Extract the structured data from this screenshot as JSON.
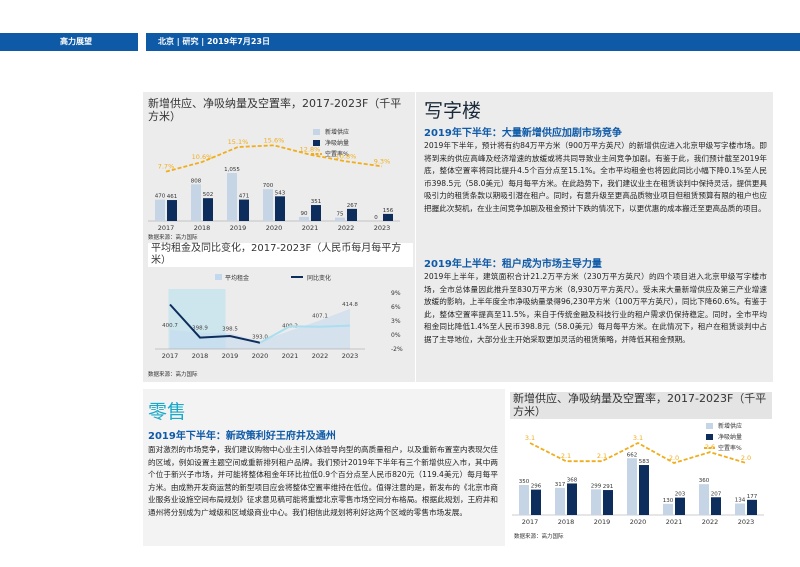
{
  "header": {
    "left": "高力展望",
    "right": "北京 | 研究 | 2019年7月23日"
  },
  "office": {
    "heading": "写字楼",
    "chart1": {
      "title": "新增供应、净吸纳量及空置率，2017-2023F（千平方米）",
      "legend": [
        "新增供应",
        "净吸纳量",
        "空置率%"
      ],
      "source": "数据来源：高力国际"
    },
    "chart2": {
      "title": "平均租金及同比变化，2017-2023F（人民币每月每平方米）",
      "legend": [
        "平均租金",
        "同比变化"
      ],
      "source": "数据来源：高力国际"
    },
    "sub1": "2019年下半年：大量新增供应加剧市场竞争",
    "para1": "2019年下半年，预计将有约84万平方米（900万平方英尺）的新增供应进入北京甲级写字楼市场。即将到来的供应高峰及经济增速的放缓或将共同导致业主间竞争加剧。有鉴于此，我们预计截至2019年底，整体空置率将同比提升4.5个百分点至15.1%。全市平均租金也将因此同比小幅下降0.1%至人民币398.5元（58.0美元）每月每平方米。在此趋势下，我们建议业主在租赁谈判中保持灵活，提供更具吸引力的租赁条款以期吸引潜在租户。同时，有意升级至更高品质物业项目但租赁预算有限的租户也应把握此次契机，在业主间竞争加剧及租金预计下跌的情况下，以更优惠的成本搬迁至更高品质的项目。",
    "sub2": "2019年上半年：租户成为市场主导力量",
    "para2": "2019年上半年，建筑面积合计21.2万平方米（230万平方英尺）的四个项目进入北京甲级写字楼市场，全市总体量因此推升至830万平方米（8,930万平方英尺）。受未来大量新增供应及第三产业增速放缓的影响，上半年度全市净吸纳量录得96,230平方米（100万平方英尺），同比下降60.6%。有鉴于此，整体空置率提高至11.5%，来自于传统金融及科技行业的租户需求仍保持稳定。同时，全市平均租金同比降低1.4%至人民币398.8元（58.0美元）每月每平方米。在此情况下，租户在租赁谈判中占据了主导地位，大部分业主开始采取更加灵活的租赁策略，并降低其租金预期。"
  },
  "retail": {
    "heading": "零售",
    "sub": "2019年下半年：新政策利好王府井及通州",
    "para": "面对激烈的市场竞争，我们建议购物中心业主引入体验导向型的高质量租户，以及重新布置室内表现欠佳的区域，例如设置主题空间或重新排列租户品牌。我们预计2019年下半年有三个新增供应入市，其中两个位于新兴子市场，并可能将整体租金年环比拉低0.9个百分点至人民币820元（119.4美元）每月每平方米。由成熟开发商运营的新型项目应会将整体空置率维持在低位。值得注意的是，新发布的《北京市商业服务业设施空间布局规划》征求意见稿可能将重塑北京零售市场空间分布格局。根据此规划，王府井和通州将分别成为广域级和区域级商业中心。我们相信此规划将利好这两个区域的零售市场发展。",
    "chart": {
      "title": "新增供应、净吸纳量及空置率，2017-2023F（千平方米）",
      "legend": [
        "新增供应",
        "净吸纳量",
        "空置率%"
      ],
      "source": "数据来源：高力国际"
    }
  },
  "chart_data": [
    {
      "type": "bar",
      "title": "新增供应、净吸纳量及空置率，2017-2023F（千平方米）",
      "categories": [
        "2017",
        "2018",
        "2019",
        "2020",
        "2021",
        "2022",
        "2023"
      ],
      "series": [
        {
          "name": "新增供应",
          "values": [
            470,
            808,
            1055,
            700,
            90,
            75,
            0
          ]
        },
        {
          "name": "净吸纳量",
          "values": [
            461,
            502,
            471,
            543,
            351,
            267,
            156
          ]
        },
        {
          "name": "空置率%",
          "values": [
            7.7,
            10.6,
            15.1,
            15.6,
            12.8,
            10.8,
            9.3
          ]
        }
      ],
      "value_labels": {
        "supply": [
          "470",
          "808",
          "1,055",
          "700",
          "90",
          "75",
          "0"
        ],
        "absorb": [
          "461",
          "502",
          "471",
          "543",
          "351",
          "267",
          "156"
        ],
        "vacancy": [
          "7.7%",
          "10.6%",
          "15.1%",
          "15.6%",
          "12.8%",
          "10.8%",
          "9.3%"
        ]
      },
      "colors": [
        "#c5d5e6",
        "#0d2d5c",
        "#f0ad1c"
      ]
    },
    {
      "type": "area",
      "title": "平均租金及同比变化，2017-2023F（人民币每月每平方米）",
      "categories": [
        "2017",
        "2018",
        "2019",
        "2020",
        "2021",
        "2022",
        "2023"
      ],
      "series": [
        {
          "name": "平均租金",
          "values": [
            400.7,
            398.9,
            398.5,
            393.0,
            400.2,
            407.1,
            414.8
          ]
        },
        {
          "name": "同比变化",
          "values": [
            6.0,
            -0.4,
            -0.1,
            -1.4,
            1.8,
            1.7,
            1.9
          ]
        }
      ],
      "rent_labels": [
        "400.7",
        "398.9",
        "398.5",
        "393.0",
        "400.2",
        "407.1",
        "414.8"
      ],
      "y2_ticks": [
        "9%",
        "6%",
        "3%",
        "0%",
        "-2%"
      ],
      "colors": [
        "#c3d8ee",
        "#0d2d5c",
        "#a9dff0"
      ]
    },
    {
      "type": "bar",
      "title": "新增供应、净吸纳量及空置率，2017-2023F（千平方米）",
      "categories": [
        "2017",
        "2018",
        "2019",
        "2020",
        "2021",
        "2022",
        "2023"
      ],
      "series": [
        {
          "name": "新增供应",
          "values": [
            350,
            317,
            299,
            662,
            130,
            360,
            134
          ]
        },
        {
          "name": "净吸纳量",
          "values": [
            296,
            368,
            291,
            583,
            203,
            207,
            177
          ]
        },
        {
          "name": "空置率%",
          "values": [
            3.1,
            2.1,
            2.1,
            3.1,
            2.0,
            2.6,
            2.0
          ]
        }
      ],
      "value_labels": {
        "supply": [
          "350",
          "317",
          "299",
          "662",
          "130",
          "360",
          "134"
        ],
        "absorb": [
          "296",
          "368",
          "291",
          "583",
          "203",
          "207",
          "177"
        ],
        "vacancy": [
          "3.1",
          "2.1",
          "2.1",
          "3.1",
          "2.0",
          "2.6",
          "2.0"
        ]
      },
      "colors": [
        "#c5d5e6",
        "#0d2d5c",
        "#f0ad1c"
      ]
    }
  ]
}
